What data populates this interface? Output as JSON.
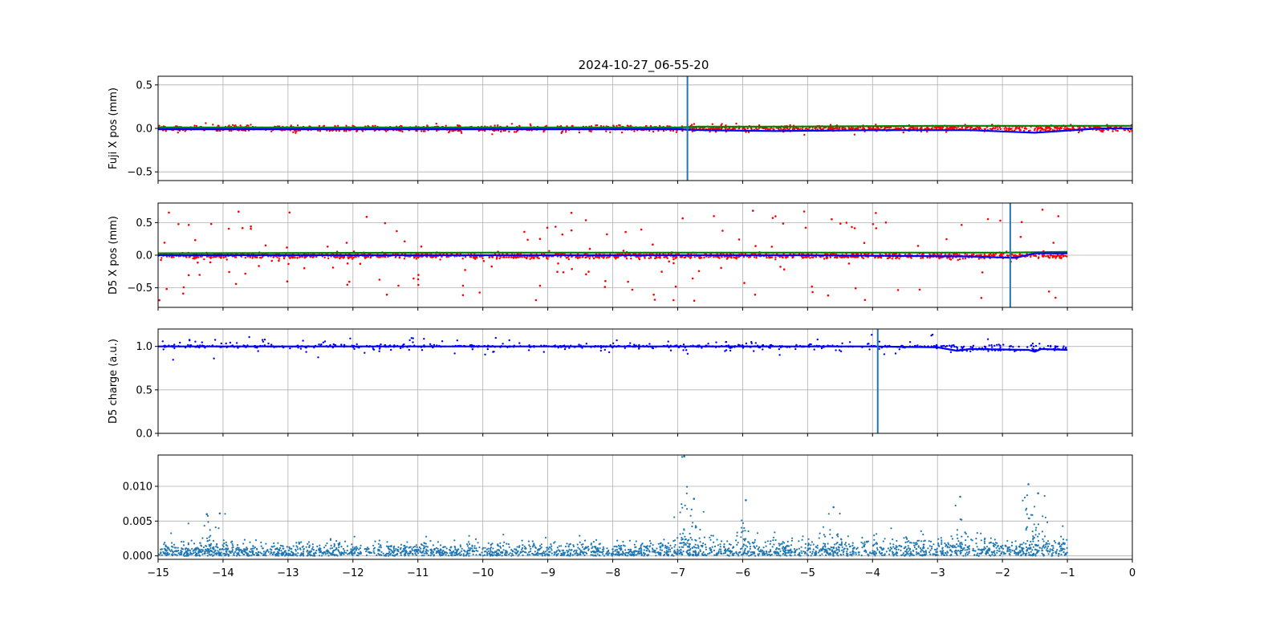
{
  "figure": {
    "title": "2024-10-27_06-55-20"
  },
  "chart_data": [
    {
      "type": "scatter",
      "panel": "fuji-x",
      "ylabel": "Fuji X pos (mm)",
      "xlim": [
        -15,
        0
      ],
      "ylim": [
        -0.6,
        0.6
      ],
      "yticks": [
        -0.5,
        0.0,
        0.5
      ],
      "ytick_labels": [
        "−0.5",
        "0.0",
        "0.5"
      ],
      "grid": true,
      "marker_line_x": -6.85,
      "series": [
        {
          "role": "scatter-red",
          "color": "#ff0000",
          "x_range": [
            -15,
            0
          ],
          "level": 0.0,
          "spread": 0.035
        },
        {
          "role": "line-green",
          "color": "#008000",
          "points": [
            [
              -15,
              0.01
            ],
            [
              -7,
              0.01
            ],
            [
              -6.7,
              0.02
            ],
            [
              -5.5,
              0.02
            ],
            [
              -3,
              0.03
            ],
            [
              -1.5,
              0.03
            ],
            [
              0,
              0.03
            ]
          ]
        },
        {
          "role": "line-blue",
          "color": "#0000ff",
          "points": [
            [
              -15,
              -0.01
            ],
            [
              -7,
              -0.01
            ],
            [
              -6.6,
              -0.02
            ],
            [
              -5.5,
              -0.03
            ],
            [
              -4,
              -0.02
            ],
            [
              -2.5,
              -0.02
            ],
            [
              -1.5,
              -0.05
            ],
            [
              -0.5,
              0.0
            ],
            [
              0,
              0.0
            ]
          ]
        }
      ]
    },
    {
      "type": "scatter",
      "panel": "d5-x",
      "ylabel": "D5 X pos (mm)",
      "xlim": [
        -15,
        0
      ],
      "ylim": [
        -0.8,
        0.8
      ],
      "yticks": [
        -0.5,
        0.0,
        0.5
      ],
      "ytick_labels": [
        "−0.5",
        "0.0",
        "0.5"
      ],
      "grid": true,
      "marker_line_x": -1.88,
      "series": [
        {
          "role": "scatter-red",
          "color": "#ff0000",
          "x_range": [
            -15,
            -1
          ],
          "level": -0.01,
          "spread": 0.04,
          "outliers": 160,
          "outlier_range": [
            -0.7,
            0.7
          ]
        },
        {
          "role": "line-green",
          "color": "#008000",
          "points": [
            [
              -15,
              0.03
            ],
            [
              -10,
              0.04
            ],
            [
              -5,
              0.04
            ],
            [
              -2,
              0.04
            ],
            [
              -1,
              0.05
            ]
          ]
        },
        {
          "role": "line-blue",
          "color": "#0000ff",
          "points": [
            [
              -15,
              0.0
            ],
            [
              -10,
              0.0
            ],
            [
              -5,
              0.0
            ],
            [
              -2.5,
              -0.02
            ],
            [
              -1.8,
              -0.04
            ],
            [
              -1.5,
              0.03
            ],
            [
              -1,
              0.03
            ]
          ]
        }
      ]
    },
    {
      "type": "scatter",
      "panel": "d5-charge",
      "ylabel": "D5 charge (a.u.)",
      "xlim": [
        -15,
        0
      ],
      "ylim": [
        0.0,
        1.2
      ],
      "yticks": [
        0.0,
        0.5,
        1.0
      ],
      "ytick_labels": [
        "0.0",
        "0.5",
        "1.0"
      ],
      "grid": true,
      "marker_line_x": -3.92,
      "series": [
        {
          "role": "scatter-blue",
          "color": "#0000ff",
          "x_range": [
            -15,
            -1
          ],
          "level": 1.0,
          "spread": 0.05
        },
        {
          "role": "line-blue",
          "color": "#0000ff",
          "points": [
            [
              -15,
              1.0
            ],
            [
              -4,
              1.0
            ],
            [
              -3.0,
              0.99
            ],
            [
              -2.7,
              0.95
            ],
            [
              -2.5,
              0.97
            ],
            [
              -1.6,
              0.96
            ],
            [
              -1.5,
              0.94
            ],
            [
              -1.4,
              0.97
            ],
            [
              -1,
              0.96
            ]
          ]
        }
      ]
    },
    {
      "type": "scatter",
      "panel": "bottom",
      "ylabel": "",
      "xlim": [
        -15,
        0
      ],
      "ylim": [
        -0.0005,
        0.0145
      ],
      "yticks": [
        0.0,
        0.005,
        0.01
      ],
      "ytick_labels": [
        "0.000",
        "0.005",
        "0.010"
      ],
      "xticks": [
        -15,
        -14,
        -13,
        -12,
        -11,
        -10,
        -9,
        -8,
        -7,
        -6,
        -5,
        -4,
        -3,
        -2,
        -1,
        0
      ],
      "xtick_labels": [
        "−15",
        "−14",
        "−13",
        "−12",
        "−11",
        "−10",
        "−9",
        "−8",
        "−7",
        "−6",
        "−5",
        "−4",
        "−3",
        "−2",
        "−1",
        "0"
      ],
      "grid": true,
      "series": [
        {
          "role": "scatter-steelblue",
          "color": "#1f77b4",
          "x_range": [
            -15,
            -1
          ],
          "level": 0.0008,
          "spread": 0.0025,
          "peaks": [
            [
              -6.9,
              0.0143
            ],
            [
              -6.75,
              0.0082
            ],
            [
              -5.95,
              0.008
            ],
            [
              -4.6,
              0.007
            ],
            [
              -2.65,
              0.0085
            ],
            [
              -1.6,
              0.0103
            ],
            [
              -1.45,
              0.009
            ],
            [
              -14.25,
              0.006
            ],
            [
              -14.05,
              0.0061
            ]
          ]
        }
      ]
    }
  ]
}
